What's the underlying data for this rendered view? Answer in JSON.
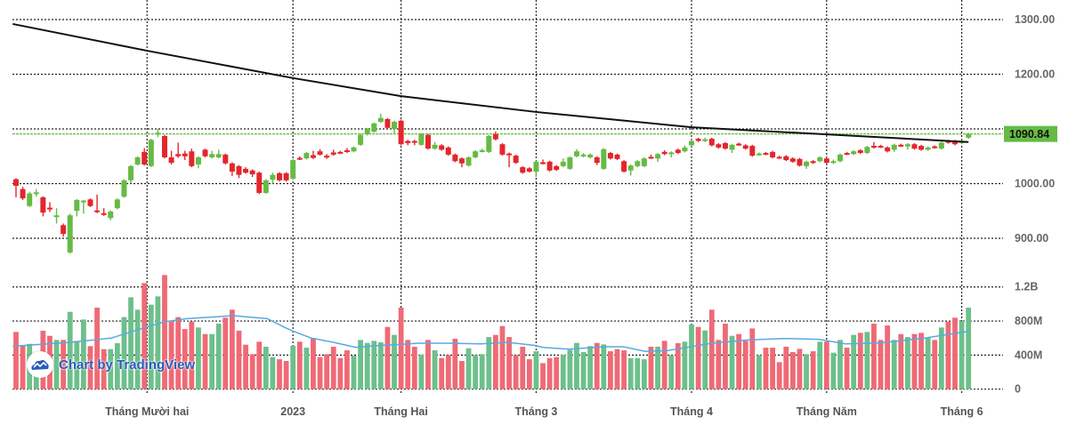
{
  "chart_data": {
    "type": "candlestick",
    "price_axis": {
      "range": [
        870,
        1310
      ],
      "tick_labels": [
        "1300.00",
        "1200.00",
        "1000.00",
        "900.00"
      ],
      "ticks": [
        1300,
        1200,
        1000,
        900
      ],
      "gridlines": [
        1300,
        1200,
        1100,
        1000,
        900
      ]
    },
    "volume_axis": {
      "range": [
        0,
        1400
      ],
      "tick_labels": [
        "1.2B",
        "800M",
        "400M",
        "0"
      ],
      "ticks": [
        1200,
        800,
        400,
        0
      ],
      "unit": "M"
    },
    "x_ticks": [
      {
        "label": "Tháng Mười hai",
        "bar": 19.4
      },
      {
        "label": "2023",
        "bar": 41
      },
      {
        "label": "Tháng Hai",
        "bar": 57
      },
      {
        "label": "Tháng 3",
        "bar": 77
      },
      {
        "label": "Tháng 4",
        "bar": 100
      },
      {
        "label": "Tháng Năm",
        "bar": 120
      },
      {
        "label": "Tháng 6",
        "bar": 140
      }
    ],
    "last_price": {
      "value": 1090.84,
      "label": "1090.84"
    },
    "grid": true,
    "colors": {
      "up": "#66bb44",
      "down": "#e3262d",
      "vol_up": "#6cc08b",
      "vol_down": "#ef6a75",
      "ma_long": "#111111",
      "vol_ma": "#5aa9e0",
      "last_price": "#66bb44"
    },
    "candles_fields": [
      "open",
      "high",
      "low",
      "close"
    ],
    "candles": [
      [
        1008,
        1010,
        975,
        996
      ],
      [
        990,
        994,
        970,
        973
      ],
      [
        959,
        985,
        957,
        982
      ],
      [
        982,
        990,
        976,
        984
      ],
      [
        975,
        977,
        940,
        947
      ],
      [
        956,
        966,
        948,
        954
      ],
      [
        940,
        955,
        927,
        942
      ],
      [
        924,
        927,
        903,
        908
      ],
      [
        874,
        945,
        872,
        942
      ],
      [
        950,
        972,
        940,
        970
      ],
      [
        967,
        970,
        945,
        969
      ],
      [
        971,
        973,
        957,
        959
      ],
      [
        951,
        980,
        946,
        949
      ],
      [
        946,
        955,
        941,
        944
      ],
      [
        937,
        951,
        933,
        949
      ],
      [
        955,
        973,
        953,
        971
      ],
      [
        976,
        1008,
        974,
        1006
      ],
      [
        1006,
        1034,
        1000,
        1032
      ],
      [
        1035,
        1050,
        1033,
        1048
      ],
      [
        1058,
        1065,
        1033,
        1035
      ],
      [
        1032,
        1082,
        1030,
        1080
      ],
      [
        1091,
        1100,
        1085,
        1093
      ],
      [
        1087,
        1089,
        1046,
        1048
      ],
      [
        1048,
        1060,
        1035,
        1038
      ],
      [
        1054,
        1075,
        1047,
        1050
      ],
      [
        1055,
        1060,
        1043,
        1050
      ],
      [
        1059,
        1064,
        1030,
        1032
      ],
      [
        1035,
        1050,
        1028,
        1048
      ],
      [
        1062,
        1064,
        1048,
        1050
      ],
      [
        1048,
        1060,
        1046,
        1054
      ],
      [
        1048,
        1062,
        1046,
        1054
      ],
      [
        1053,
        1055,
        1035,
        1037
      ],
      [
        1037,
        1039,
        1014,
        1022
      ],
      [
        1032,
        1034,
        1010,
        1016
      ],
      [
        1027,
        1030,
        1018,
        1020
      ],
      [
        1024,
        1026,
        1012,
        1017
      ],
      [
        1020,
        1022,
        981,
        983
      ],
      [
        983,
        1008,
        981,
        1006
      ],
      [
        1007,
        1020,
        1000,
        1016
      ],
      [
        1019,
        1021,
        1004,
        1006
      ],
      [
        1019,
        1021,
        1004,
        1006
      ],
      [
        1009,
        1045,
        1007,
        1043
      ],
      [
        1047,
        1050,
        1043,
        1045
      ],
      [
        1046,
        1058,
        1044,
        1056
      ],
      [
        1052,
        1060,
        1045,
        1047
      ],
      [
        1059,
        1063,
        1051,
        1053
      ],
      [
        1051,
        1054,
        1045,
        1049
      ],
      [
        1057,
        1062,
        1051,
        1053
      ],
      [
        1058,
        1060,
        1054,
        1056
      ],
      [
        1061,
        1065,
        1056,
        1058
      ],
      [
        1059,
        1068,
        1057,
        1066
      ],
      [
        1071,
        1091,
        1069,
        1089
      ],
      [
        1090,
        1102,
        1088,
        1100
      ],
      [
        1095,
        1112,
        1093,
        1110
      ],
      [
        1113,
        1128,
        1111,
        1120
      ],
      [
        1118,
        1120,
        1100,
        1102
      ],
      [
        1100,
        1115,
        1090,
        1113
      ],
      [
        1115,
        1117,
        1070,
        1072
      ],
      [
        1078,
        1080,
        1070,
        1074
      ],
      [
        1078,
        1080,
        1070,
        1076
      ],
      [
        1071,
        1092,
        1069,
        1090
      ],
      [
        1089,
        1091,
        1062,
        1064
      ],
      [
        1064,
        1076,
        1062,
        1071
      ],
      [
        1070,
        1072,
        1060,
        1062
      ],
      [
        1066,
        1068,
        1051,
        1053
      ],
      [
        1053,
        1055,
        1039,
        1041
      ],
      [
        1046,
        1048,
        1030,
        1037
      ],
      [
        1033,
        1050,
        1031,
        1048
      ],
      [
        1048,
        1061,
        1046,
        1059
      ],
      [
        1059,
        1064,
        1057,
        1061
      ],
      [
        1058,
        1089,
        1056,
        1087
      ],
      [
        1090,
        1095,
        1079,
        1081
      ],
      [
        1072,
        1074,
        1051,
        1053
      ],
      [
        1055,
        1057,
        1030,
        1053
      ],
      [
        1051,
        1053,
        1036,
        1038
      ],
      [
        1030,
        1032,
        1018,
        1020
      ],
      [
        1028,
        1030,
        1020,
        1022
      ],
      [
        1022,
        1042,
        1012,
        1040
      ],
      [
        1039,
        1044,
        1035,
        1037
      ],
      [
        1040,
        1042,
        1022,
        1024
      ],
      [
        1032,
        1034,
        1023,
        1025
      ],
      [
        1032,
        1046,
        1030,
        1040
      ],
      [
        1027,
        1050,
        1025,
        1048
      ],
      [
        1050,
        1063,
        1048,
        1059
      ],
      [
        1050,
        1056,
        1048,
        1053
      ],
      [
        1048,
        1055,
        1046,
        1053
      ],
      [
        1048,
        1050,
        1034,
        1038
      ],
      [
        1027,
        1065,
        1025,
        1063
      ],
      [
        1056,
        1058,
        1044,
        1046
      ],
      [
        1053,
        1055,
        1043,
        1045
      ],
      [
        1041,
        1043,
        1020,
        1022
      ],
      [
        1024,
        1035,
        1015,
        1033
      ],
      [
        1032,
        1043,
        1030,
        1041
      ],
      [
        1032,
        1048,
        1030,
        1046
      ],
      [
        1049,
        1053,
        1045,
        1047
      ],
      [
        1046,
        1056,
        1040,
        1054
      ],
      [
        1058,
        1061,
        1052,
        1054
      ],
      [
        1055,
        1059,
        1048,
        1057
      ],
      [
        1062,
        1064,
        1054,
        1056
      ],
      [
        1059,
        1070,
        1057,
        1066
      ],
      [
        1070,
        1080,
        1068,
        1078
      ],
      [
        1082,
        1084,
        1076,
        1078
      ],
      [
        1079,
        1084,
        1076,
        1081
      ],
      [
        1082,
        1084,
        1068,
        1070
      ],
      [
        1072,
        1074,
        1064,
        1066
      ],
      [
        1074,
        1076,
        1062,
        1064
      ],
      [
        1062,
        1073,
        1056,
        1071
      ],
      [
        1073,
        1075,
        1069,
        1071
      ],
      [
        1070,
        1072,
        1062,
        1064
      ],
      [
        1069,
        1071,
        1049,
        1051
      ],
      [
        1053,
        1057,
        1051,
        1055
      ],
      [
        1056,
        1058,
        1052,
        1054
      ],
      [
        1058,
        1060,
        1046,
        1048
      ],
      [
        1049,
        1051,
        1045,
        1047
      ],
      [
        1050,
        1052,
        1041,
        1043
      ],
      [
        1046,
        1048,
        1038,
        1040
      ],
      [
        1045,
        1047,
        1031,
        1033
      ],
      [
        1032,
        1042,
        1027,
        1040
      ],
      [
        1041,
        1043,
        1036,
        1038
      ],
      [
        1041,
        1050,
        1039,
        1048
      ],
      [
        1046,
        1048,
        1036,
        1038
      ],
      [
        1039,
        1044,
        1036,
        1041
      ],
      [
        1041,
        1055,
        1039,
        1053
      ],
      [
        1056,
        1058,
        1052,
        1054
      ],
      [
        1054,
        1061,
        1052,
        1059
      ],
      [
        1061,
        1063,
        1054,
        1056
      ],
      [
        1056,
        1069,
        1054,
        1067
      ],
      [
        1069,
        1076,
        1064,
        1066
      ],
      [
        1069,
        1071,
        1065,
        1067
      ],
      [
        1066,
        1068,
        1057,
        1059
      ],
      [
        1062,
        1073,
        1058,
        1071
      ],
      [
        1071,
        1073,
        1067,
        1069
      ],
      [
        1068,
        1074,
        1062,
        1072
      ],
      [
        1072,
        1074,
        1062,
        1064
      ],
      [
        1069,
        1071,
        1060,
        1062
      ],
      [
        1062,
        1068,
        1060,
        1066
      ],
      [
        1068,
        1070,
        1064,
        1066
      ],
      [
        1064,
        1077,
        1062,
        1075
      ],
      [
        1078,
        1080,
        1073,
        1075
      ],
      [
        1078,
        1080,
        1070,
        1072
      ],
      [
        1074,
        1080,
        1072,
        1078
      ],
      [
        1084,
        1093,
        1082,
        1090.84
      ]
    ],
    "volumes_millions": [
      672,
      515,
      532,
      430,
      686,
      626,
      578,
      578,
      908,
      567,
      818,
      505,
      957,
      470,
      470,
      540,
      846,
      1079,
      933,
      1246,
      992,
      1089,
      1340,
      793,
      846,
      706,
      793,
      724,
      647,
      647,
      769,
      839,
      933,
      686,
      522,
      411,
      557,
      498,
      376,
      351,
      331,
      508,
      557,
      487,
      602,
      376,
      411,
      498,
      365,
      456,
      393,
      578,
      543,
      567,
      550,
      731,
      637,
      957,
      578,
      498,
      404,
      578,
      456,
      365,
      400,
      592,
      331,
      480,
      400,
      411,
      612,
      637,
      741,
      612,
      400,
      498,
      351,
      445,
      306,
      365,
      376,
      404,
      463,
      543,
      435,
      505,
      543,
      525,
      445,
      470,
      456,
      365,
      365,
      351,
      498,
      498,
      567,
      400,
      540,
      557,
      759,
      731,
      689,
      933,
      578,
      769,
      626,
      647,
      567,
      713,
      400,
      487,
      487,
      317,
      498,
      435,
      473,
      411,
      445,
      557,
      557,
      428,
      578,
      487,
      637,
      661,
      672,
      769,
      578,
      748,
      578,
      647,
      612,
      647,
      661,
      602,
      578,
      724,
      793,
      839,
      800,
      957
    ],
    "ma_long": [
      [
        -0.5,
        1292
      ],
      [
        19.4,
        1243
      ],
      [
        41,
        1193
      ],
      [
        57,
        1160
      ],
      [
        77,
        1131
      ],
      [
        100,
        1103
      ],
      [
        120,
        1090
      ],
      [
        141,
        1076
      ]
    ],
    "volume_ma": [
      [
        -0.5,
        505
      ],
      [
        8.2,
        550
      ],
      [
        14.1,
        600
      ],
      [
        19.1,
        724
      ],
      [
        22.1,
        793
      ],
      [
        25.3,
        828
      ],
      [
        32.1,
        863
      ],
      [
        37.2,
        828
      ],
      [
        39.8,
        724
      ],
      [
        41.1,
        679
      ],
      [
        43.7,
        600
      ],
      [
        47,
        550
      ],
      [
        50.3,
        490
      ],
      [
        54,
        515
      ],
      [
        56.9,
        525
      ],
      [
        59.6,
        540
      ],
      [
        63.5,
        540
      ],
      [
        68.8,
        532
      ],
      [
        72.7,
        550
      ],
      [
        76.7,
        515
      ],
      [
        78,
        490
      ],
      [
        81.9,
        470
      ],
      [
        87.2,
        498
      ],
      [
        89.9,
        498
      ],
      [
        93.1,
        445
      ],
      [
        96.4,
        452
      ],
      [
        100.4,
        505
      ],
      [
        103,
        540
      ],
      [
        108.3,
        578
      ],
      [
        113.6,
        595
      ],
      [
        118.8,
        585
      ],
      [
        122.8,
        532
      ],
      [
        128.1,
        543
      ],
      [
        134.7,
        602
      ],
      [
        141,
        679
      ]
    ]
  },
  "branding": {
    "logo_text": "Chart by TradingView",
    "icon": "tradingview-cloud-icon"
  }
}
